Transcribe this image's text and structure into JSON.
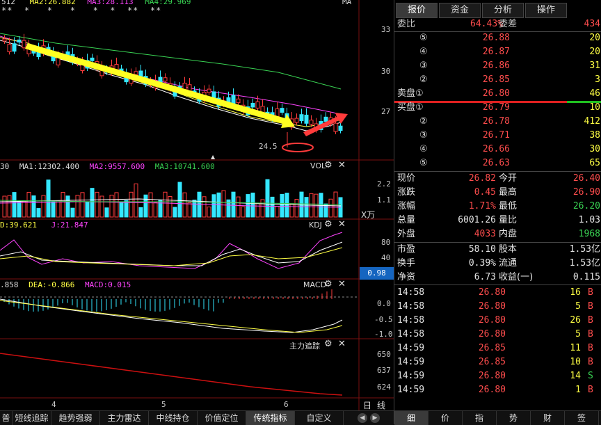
{
  "main_chart": {
    "legend": {
      "ma_prefix": "512",
      "ma2": "MA2:26.882",
      "ma3": "MA3:28.113",
      "ma4": "MA4:29.969",
      "ma_label": "MA"
    },
    "stars": "**  *   *   *   *  *  **  **",
    "y_ticks": [
      "33",
      "30",
      "27"
    ],
    "low_label": "24.5",
    "marker_arrow": "▲"
  },
  "vol_panel": {
    "legend_prefix": "30",
    "ma1": "MA1:12302.400",
    "ma2": "MA2:9557.600",
    "ma3": "MA3:10741.600",
    "name": "VOL",
    "y_ticks": [
      "2.2",
      "1.1"
    ],
    "unit": "X万"
  },
  "kdj_panel": {
    "d": "D:39.621",
    "j": "J:21.847",
    "name": "KDJ",
    "y_ticks": [
      "80",
      "40"
    ],
    "current": "0.98"
  },
  "macd_panel": {
    "diff": ".858",
    "dea": "DEA:-0.866",
    "macd": "MACD:0.015",
    "name": "MACD",
    "y_ticks": [
      "0.0",
      "-0.5",
      "-1.0"
    ]
  },
  "trace_panel": {
    "name": "主力追踪",
    "y_ticks": [
      "650",
      "637",
      "624"
    ]
  },
  "panel_icons": {
    "gear": "⚙",
    "close": "✕"
  },
  "x_axis": {
    "labels": [
      "4",
      "5",
      "6"
    ],
    "period_day": "日",
    "period_line": "线"
  },
  "bottom_tabs": [
    "普",
    "短线追踪",
    "趋势强弱",
    "主力雷达",
    "中线持仓",
    "价值定位",
    "传统指标",
    "自定义"
  ],
  "bottom_tab_active": "传统指标",
  "right": {
    "tabs": [
      "报价",
      "资金",
      "分析",
      "操作"
    ],
    "ratio": {
      "label": "委比",
      "value": "64.43%",
      "diff_label": "委差",
      "diff_value": "434"
    },
    "sell": [
      {
        "idx": "⑤",
        "price": "26.88",
        "vol": "20"
      },
      {
        "idx": "④",
        "price": "26.87",
        "vol": "20"
      },
      {
        "idx": "③",
        "price": "26.86",
        "vol": "31"
      },
      {
        "idx": "②",
        "price": "26.85",
        "vol": "3"
      },
      {
        "idx": "卖盘①",
        "price": "26.80",
        "vol": "46"
      }
    ],
    "buy": [
      {
        "idx": "买盘①",
        "price": "26.79",
        "vol": "10"
      },
      {
        "idx": "②",
        "price": "26.78",
        "vol": "412"
      },
      {
        "idx": "③",
        "price": "26.71",
        "vol": "38"
      },
      {
        "idx": "④",
        "price": "26.66",
        "vol": "30"
      },
      {
        "idx": "⑤",
        "price": "26.63",
        "vol": "65"
      }
    ],
    "stats": [
      {
        "l1": "现价",
        "v1": "26.82",
        "c1": "red",
        "l2": "今开",
        "v2": "26.40",
        "c2": "red"
      },
      {
        "l1": "涨跌",
        "v1": "0.45",
        "c1": "red",
        "l2": "最高",
        "v2": "26.90",
        "c2": "red"
      },
      {
        "l1": "涨幅",
        "v1": "1.71%",
        "c1": "red",
        "l2": "最低",
        "v2": "26.20",
        "c2": "green"
      },
      {
        "l1": "总量",
        "v1": "6001.26",
        "c1": "white",
        "l2": "量比",
        "v2": "1.03",
        "c2": "white"
      },
      {
        "l1": "外盘",
        "v1": "4033",
        "c1": "red",
        "l2": "内盘",
        "v2": "1968",
        "c2": "green"
      }
    ],
    "fund": [
      {
        "l1": "市盈",
        "v1": "58.10",
        "l2": "股本",
        "v2": "1.53亿"
      },
      {
        "l1": "换手",
        "v1": "0.39%",
        "l2": "流通",
        "v2": "1.53亿"
      },
      {
        "l1": "净资",
        "v1": "6.73",
        "l2": "收益(一)",
        "v2": "0.115"
      }
    ],
    "ticks": [
      {
        "t": "14:58",
        "p": "26.80",
        "v": "16",
        "s": "B"
      },
      {
        "t": "14:58",
        "p": "26.80",
        "v": "5",
        "s": "B"
      },
      {
        "t": "14:58",
        "p": "26.80",
        "v": "26",
        "s": "B"
      },
      {
        "t": "14:58",
        "p": "26.80",
        "v": "5",
        "s": "B"
      },
      {
        "t": "14:59",
        "p": "26.85",
        "v": "11",
        "s": "B"
      },
      {
        "t": "14:59",
        "p": "26.85",
        "v": "10",
        "s": "B"
      },
      {
        "t": "14:59",
        "p": "26.80",
        "v": "14",
        "s": "S"
      },
      {
        "t": "14:59",
        "p": "26.80",
        "v": "1",
        "s": "B"
      }
    ],
    "bottom_tabs": [
      "细",
      "价",
      "指",
      "势",
      "财",
      "签"
    ]
  }
}
